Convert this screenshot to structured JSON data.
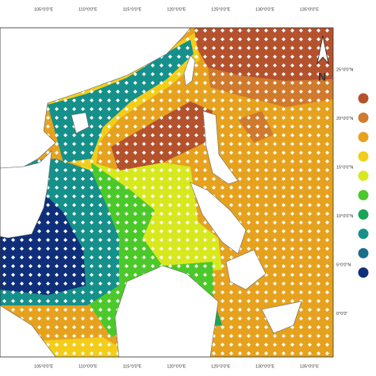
{
  "map": {
    "top_labels": [
      "105°0'0\"E",
      "110°0'0\"E",
      "115°0'0\"E",
      "120°0'0\"E",
      "125°0'0\"E",
      "130°0'0\"E",
      "135°0'0\"E"
    ],
    "right_labels": [
      "25°0'0\"N",
      "20°0'0\"N",
      "15°0'0\"N",
      "10°0'0\"N",
      "5°0'0\"N",
      "0°0'0\""
    ],
    "north_label": "N",
    "legend_colors": [
      "#b5522e",
      "#d07a2d",
      "#e6a21e",
      "#f3cd1a",
      "#d8e81e",
      "#4cc92a",
      "#1aa45a",
      "#16908a",
      "#1a6e8a",
      "#0f2f7a"
    ]
  }
}
